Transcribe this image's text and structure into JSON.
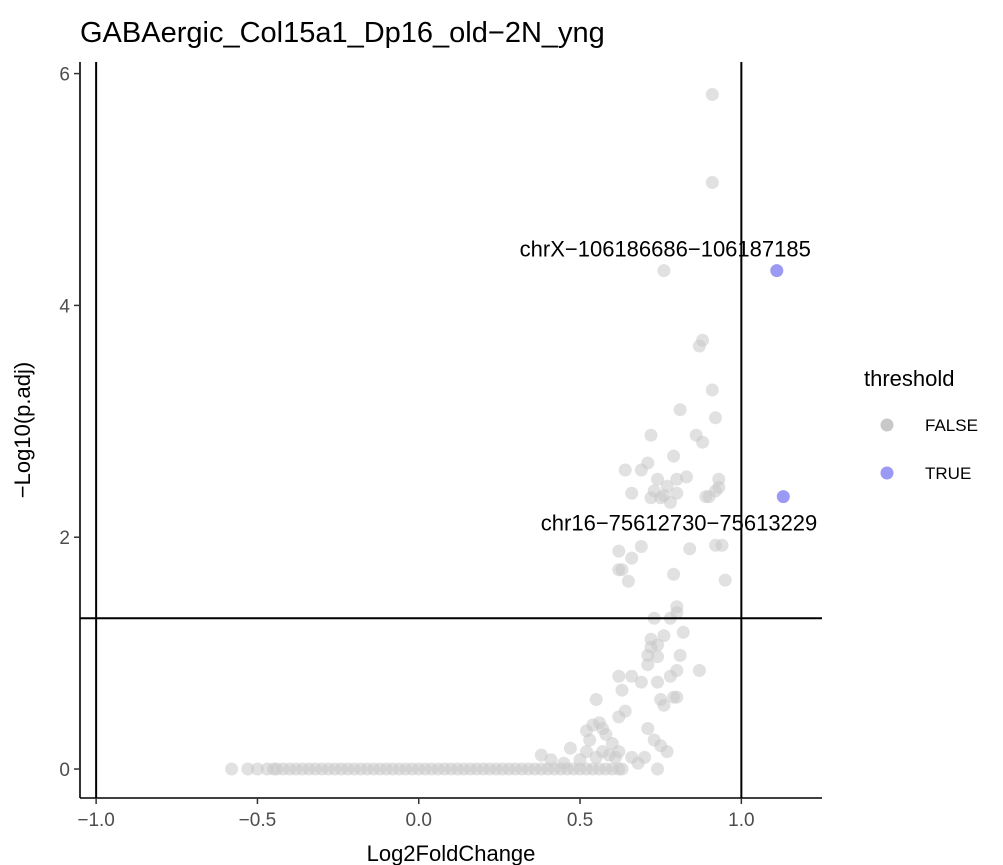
{
  "chart_data": {
    "type": "scatter",
    "title": "GABAergic_Col15a1_Dp16_old−2N_yng",
    "xlabel": "Log2FoldChange",
    "ylabel": "−Log10(p.adj)",
    "xlim": [
      -1.05,
      1.25
    ],
    "ylim": [
      -0.25,
      6.1
    ],
    "x_ticks": [
      -1.0,
      -0.5,
      0.0,
      0.5,
      1.0
    ],
    "x_tick_labels": [
      "−1.0",
      "−0.5",
      "0.0",
      "0.5",
      "1.0"
    ],
    "y_ticks": [
      0,
      2,
      4,
      6
    ],
    "y_tick_labels": [
      "0",
      "2",
      "4",
      "6"
    ],
    "grid": false,
    "reference_lines": {
      "vertical": [
        -1.0,
        1.0
      ],
      "horizontal": [
        1.301
      ]
    },
    "legend": {
      "title": "threshold",
      "placement": "right",
      "entries": [
        {
          "label": "FALSE",
          "color": "#c8c8c8"
        },
        {
          "label": "TRUE",
          "color": "#9a9af4"
        }
      ]
    },
    "series": [
      {
        "name": "FALSE",
        "color": "#c8c8c8",
        "points": [
          [
            -0.58,
            0
          ],
          [
            -0.53,
            0
          ],
          [
            -0.5,
            0
          ],
          [
            -0.47,
            0
          ],
          [
            -0.45,
            0
          ],
          [
            -0.44,
            0
          ],
          [
            -0.42,
            0
          ],
          [
            -0.4,
            0
          ],
          [
            -0.38,
            0
          ],
          [
            -0.36,
            0
          ],
          [
            -0.34,
            0
          ],
          [
            -0.32,
            0
          ],
          [
            -0.3,
            0
          ],
          [
            -0.28,
            0
          ],
          [
            -0.26,
            0
          ],
          [
            -0.24,
            0
          ],
          [
            -0.22,
            0
          ],
          [
            -0.2,
            0
          ],
          [
            -0.18,
            0
          ],
          [
            -0.16,
            0
          ],
          [
            -0.14,
            0
          ],
          [
            -0.12,
            0
          ],
          [
            -0.1,
            0
          ],
          [
            -0.08,
            0
          ],
          [
            -0.06,
            0
          ],
          [
            -0.04,
            0
          ],
          [
            -0.02,
            0
          ],
          [
            0.0,
            0
          ],
          [
            0.02,
            0
          ],
          [
            0.04,
            0
          ],
          [
            0.06,
            0
          ],
          [
            0.08,
            0
          ],
          [
            0.1,
            0
          ],
          [
            0.12,
            0
          ],
          [
            0.14,
            0
          ],
          [
            0.16,
            0
          ],
          [
            0.18,
            0
          ],
          [
            0.2,
            0
          ],
          [
            0.22,
            0
          ],
          [
            0.24,
            0
          ],
          [
            0.26,
            0
          ],
          [
            0.28,
            0
          ],
          [
            0.3,
            0
          ],
          [
            0.32,
            0
          ],
          [
            0.34,
            0
          ],
          [
            0.36,
            0
          ],
          [
            0.38,
            0
          ],
          [
            0.4,
            0
          ],
          [
            0.42,
            0
          ],
          [
            0.44,
            0
          ],
          [
            0.46,
            0
          ],
          [
            0.48,
            0
          ],
          [
            0.5,
            0
          ],
          [
            0.52,
            0
          ],
          [
            0.54,
            0
          ],
          [
            0.56,
            0
          ],
          [
            0.58,
            0
          ],
          [
            0.6,
            0
          ],
          [
            0.62,
            0
          ],
          [
            0.63,
            0
          ],
          [
            0.74,
            0
          ],
          [
            0.38,
            0.12
          ],
          [
            0.41,
            0.08
          ],
          [
            0.45,
            0.05
          ],
          [
            0.47,
            0.18
          ],
          [
            0.5,
            0.08
          ],
          [
            0.52,
            0.15
          ],
          [
            0.53,
            0.25
          ],
          [
            0.55,
            0.1
          ],
          [
            0.57,
            0.15
          ],
          [
            0.59,
            0.12
          ],
          [
            0.61,
            0.1
          ],
          [
            0.62,
            0.15
          ],
          [
            0.66,
            0.1
          ],
          [
            0.6,
            0.22
          ],
          [
            0.58,
            0.3
          ],
          [
            0.52,
            0.33
          ],
          [
            0.54,
            0.38
          ],
          [
            0.56,
            0.4
          ],
          [
            0.57,
            0.35
          ],
          [
            0.55,
            0.6
          ],
          [
            0.62,
            0.45
          ],
          [
            0.64,
            0.5
          ],
          [
            0.63,
            0.68
          ],
          [
            0.62,
            0.8
          ],
          [
            0.66,
            0.8
          ],
          [
            0.69,
            0.75
          ],
          [
            0.71,
            0.9
          ],
          [
            0.71,
            0.98
          ],
          [
            0.72,
            1.05
          ],
          [
            0.74,
            0.97
          ],
          [
            0.74,
            0.75
          ],
          [
            0.75,
            0.6
          ],
          [
            0.76,
            0.55
          ],
          [
            0.78,
            0.8
          ],
          [
            0.79,
            0.62
          ],
          [
            0.8,
            0.62
          ],
          [
            0.8,
            0.85
          ],
          [
            0.81,
            0.98
          ],
          [
            0.82,
            1.18
          ],
          [
            0.76,
            1.15
          ],
          [
            0.74,
            1.07
          ],
          [
            0.72,
            1.12
          ],
          [
            0.71,
            0.35
          ],
          [
            0.73,
            0.25
          ],
          [
            0.75,
            0.2
          ],
          [
            0.77,
            0.15
          ],
          [
            0.7,
            0.1
          ],
          [
            0.87,
            0.85
          ],
          [
            0.68,
            0.05
          ],
          [
            0.73,
            1.3
          ],
          [
            0.78,
            1.3
          ],
          [
            0.8,
            1.4
          ],
          [
            0.8,
            1.35
          ],
          [
            0.62,
            1.72
          ],
          [
            0.63,
            1.72
          ],
          [
            0.65,
            1.62
          ],
          [
            0.62,
            1.88
          ],
          [
            0.66,
            1.82
          ],
          [
            0.69,
            1.92
          ],
          [
            0.79,
            1.68
          ],
          [
            0.84,
            1.9
          ],
          [
            0.92,
            1.93
          ],
          [
            0.94,
            1.93
          ],
          [
            0.95,
            1.63
          ],
          [
            0.64,
            2.58
          ],
          [
            0.66,
            2.38
          ],
          [
            0.69,
            2.58
          ],
          [
            0.71,
            2.64
          ],
          [
            0.72,
            2.88
          ],
          [
            0.72,
            2.34
          ],
          [
            0.73,
            2.4
          ],
          [
            0.74,
            2.5
          ],
          [
            0.75,
            2.34
          ],
          [
            0.76,
            2.36
          ],
          [
            0.77,
            2.44
          ],
          [
            0.78,
            2.3
          ],
          [
            0.79,
            2.7
          ],
          [
            0.8,
            2.38
          ],
          [
            0.8,
            2.5
          ],
          [
            0.83,
            2.52
          ],
          [
            0.86,
            2.88
          ],
          [
            0.88,
            2.82
          ],
          [
            0.89,
            2.35
          ],
          [
            0.9,
            2.35
          ],
          [
            0.92,
            2.4
          ],
          [
            0.93,
            2.43
          ],
          [
            0.93,
            2.5
          ],
          [
            0.92,
            3.03
          ],
          [
            0.91,
            3.27
          ],
          [
            0.81,
            3.1
          ],
          [
            0.87,
            3.65
          ],
          [
            0.88,
            3.7
          ],
          [
            0.76,
            4.3
          ],
          [
            0.91,
            5.06
          ],
          [
            0.91,
            5.82
          ]
        ]
      },
      {
        "name": "TRUE",
        "color": "#9a9af4",
        "points": [
          [
            1.11,
            4.3
          ],
          [
            1.13,
            2.35
          ]
        ]
      }
    ],
    "annotations": [
      {
        "text": "chrX−106186686−106187185",
        "x": 1.11,
        "y": 4.3
      },
      {
        "text": "chr16−75612730−75613229",
        "x": 1.13,
        "y": 2.35
      }
    ]
  }
}
